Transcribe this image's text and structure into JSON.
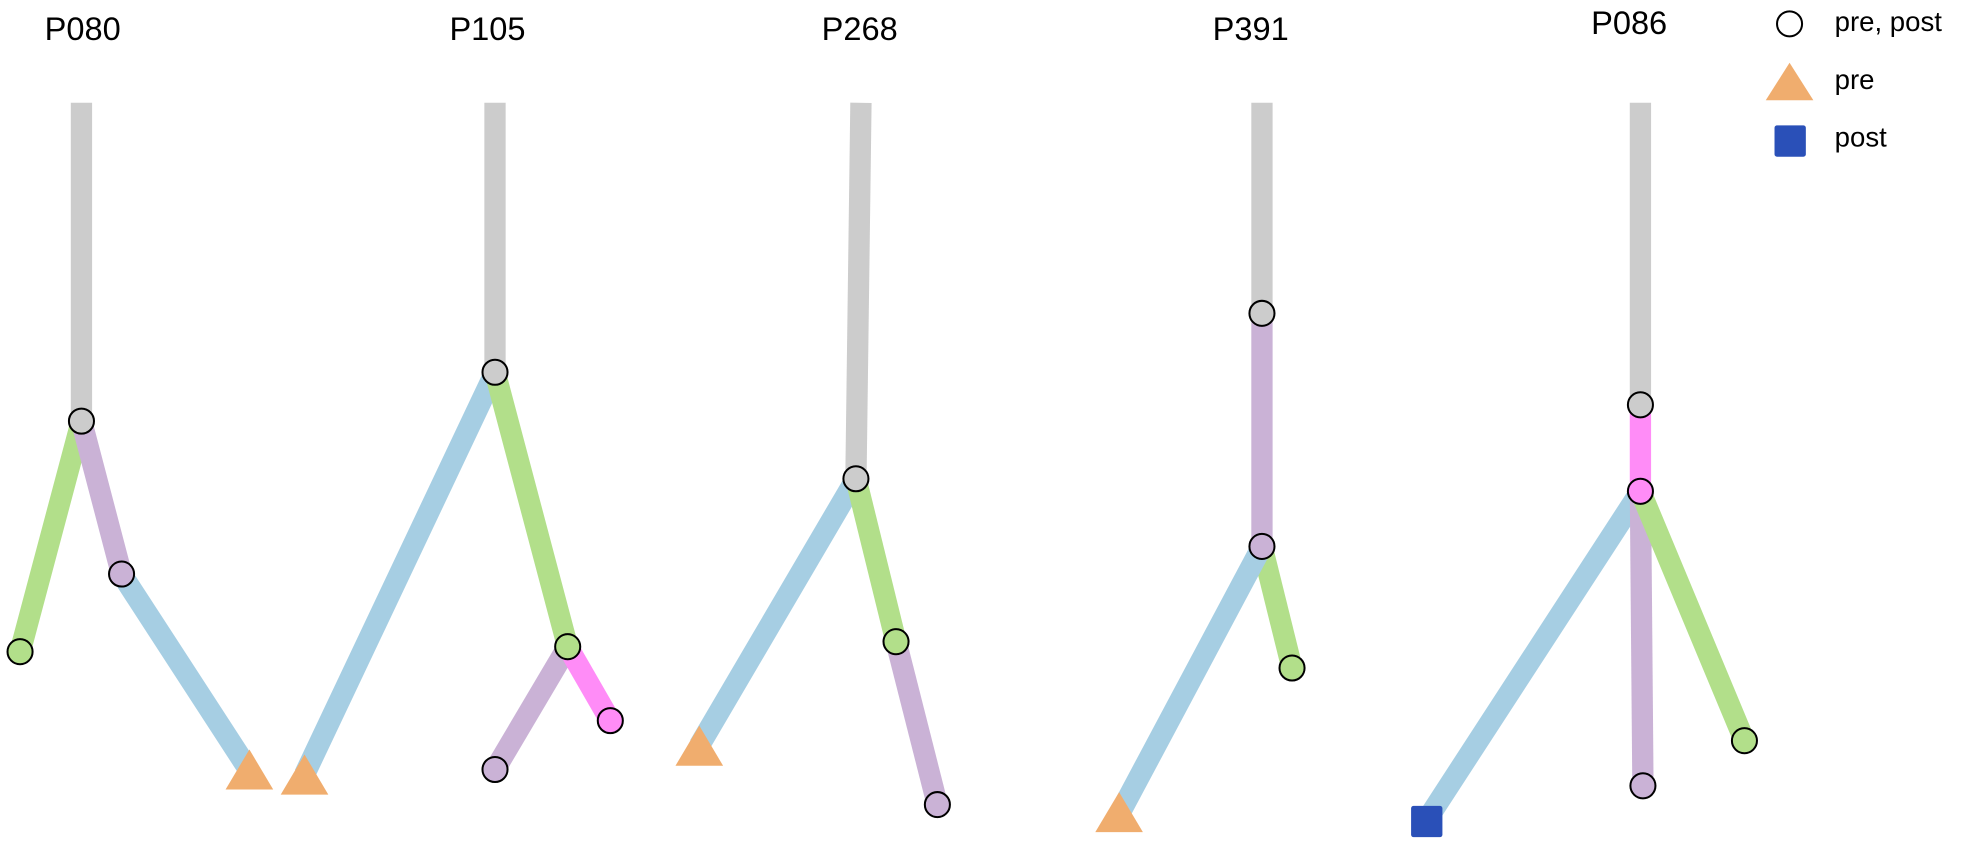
{
  "trees": [
    {
      "title": "P080"
    },
    {
      "title": "P105"
    },
    {
      "title": "P268"
    },
    {
      "title": "P391"
    },
    {
      "title": "P086"
    }
  ],
  "legend": [
    "pre, post",
    "pre",
    "post"
  ]
}
